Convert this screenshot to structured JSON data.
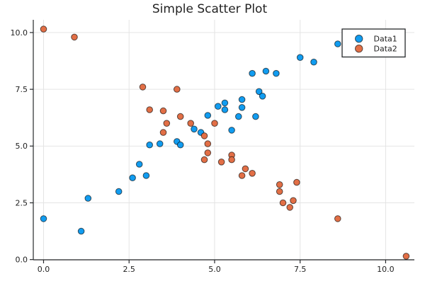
{
  "figure": {
    "background": "#ffffff"
  },
  "chart_data": {
    "type": "scatter",
    "title": "Simple Scatter Plot",
    "xlabel": "",
    "ylabel": "",
    "xlim": [
      -0.3,
      10.84
    ],
    "ylim": [
      -0.01,
      10.56
    ],
    "x_ticks": [
      0.0,
      2.5,
      5.0,
      7.5,
      10.0
    ],
    "y_ticks": [
      0.0,
      2.5,
      5.0,
      7.5,
      10.0
    ],
    "x_tick_labels": [
      "0.0",
      "2.5",
      "5.0",
      "7.5",
      "10.0"
    ],
    "y_tick_labels": [
      "0.0",
      "2.5",
      "5.0",
      "7.5",
      "10.0"
    ],
    "grid": true,
    "legend_position": "top-right",
    "marker": {
      "radius": 4.3,
      "stroke_color": "rgba(0,0,0,0.62)"
    },
    "colors": {
      "grid": "#e4e4e4",
      "spine": "#26282b",
      "text": "#1f1f1f"
    },
    "series": [
      {
        "name": "Data1",
        "color": "#119CF0",
        "points": [
          [
            0.0,
            1.8
          ],
          [
            1.1,
            1.25
          ],
          [
            1.3,
            2.7
          ],
          [
            2.2,
            3.0
          ],
          [
            2.6,
            3.6
          ],
          [
            3.0,
            3.7
          ],
          [
            2.8,
            4.2
          ],
          [
            3.1,
            5.05
          ],
          [
            3.4,
            5.1
          ],
          [
            3.9,
            5.2
          ],
          [
            4.0,
            5.05
          ],
          [
            4.4,
            5.75
          ],
          [
            4.6,
            5.6
          ],
          [
            4.8,
            6.35
          ],
          [
            5.1,
            6.75
          ],
          [
            5.3,
            6.9
          ],
          [
            5.3,
            6.6
          ],
          [
            5.5,
            5.7
          ],
          [
            5.7,
            6.3
          ],
          [
            5.8,
            7.05
          ],
          [
            5.8,
            6.7
          ],
          [
            6.1,
            8.2
          ],
          [
            6.2,
            6.3
          ],
          [
            6.3,
            7.4
          ],
          [
            6.4,
            7.2
          ],
          [
            6.5,
            8.3
          ],
          [
            6.8,
            8.2
          ],
          [
            7.5,
            8.9
          ],
          [
            7.9,
            8.7
          ],
          [
            8.6,
            9.5
          ]
        ]
      },
      {
        "name": "Data2",
        "color": "#E26F46",
        "points": [
          [
            0.0,
            10.15
          ],
          [
            0.9,
            9.8
          ],
          [
            2.9,
            7.6
          ],
          [
            3.9,
            7.5
          ],
          [
            3.1,
            6.6
          ],
          [
            3.5,
            6.55
          ],
          [
            4.0,
            6.3
          ],
          [
            3.6,
            6.0
          ],
          [
            4.3,
            6.0
          ],
          [
            5.0,
            6.0
          ],
          [
            3.5,
            5.6
          ],
          [
            4.7,
            5.45
          ],
          [
            4.8,
            5.1
          ],
          [
            4.8,
            4.7
          ],
          [
            4.7,
            4.4
          ],
          [
            5.2,
            4.3
          ],
          [
            5.5,
            4.6
          ],
          [
            5.5,
            4.4
          ],
          [
            5.9,
            4.0
          ],
          [
            5.8,
            3.7
          ],
          [
            6.1,
            3.8
          ],
          [
            6.9,
            3.3
          ],
          [
            7.4,
            3.4
          ],
          [
            6.9,
            3.0
          ],
          [
            7.0,
            2.5
          ],
          [
            7.3,
            2.6
          ],
          [
            7.2,
            2.3
          ],
          [
            8.6,
            1.8
          ],
          [
            10.6,
            0.15
          ]
        ]
      }
    ]
  }
}
